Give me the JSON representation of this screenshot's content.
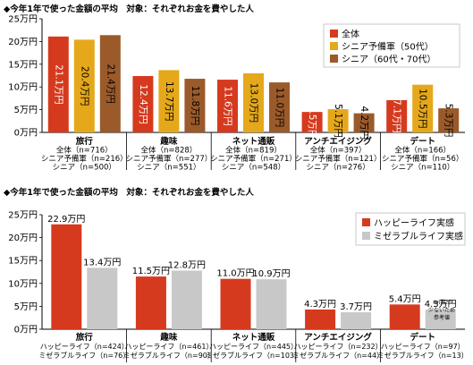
{
  "chart_data": [
    {
      "type": "bar",
      "title": "◆今年1年で使った金額の平均　対象：それぞれお金を費やした人",
      "ylim": [
        0,
        25
      ],
      "yticks": [
        "0万円",
        "5万円",
        "10万円",
        "15万円",
        "20万円",
        "25万円"
      ],
      "grid": false,
      "legend_position": "top-right",
      "categories": [
        "旅行",
        "趣味",
        "ネット通販",
        "アンチエイジング",
        "デート"
      ],
      "series": [
        {
          "name": "全体",
          "color": "#d63a1e",
          "values": [
            21.1,
            12.4,
            11.6,
            4.5,
            7.1
          ],
          "labels": [
            "21.1万円",
            "12.4万円",
            "11.6万円",
            "4.5万円",
            "7.1万円"
          ],
          "n": [
            "全体（n=716）",
            "全体（n=828）",
            "全体（n=819）",
            "全体（n=397）",
            "全体（n=166）"
          ]
        },
        {
          "name": "シニア予備軍（50代）",
          "color": "#e5a81a",
          "values": [
            20.4,
            13.7,
            13.0,
            5.1,
            10.5
          ],
          "labels": [
            "20.4万円",
            "13.7万円",
            "13.0万円",
            "5.1万円",
            "10.5万円"
          ],
          "n": [
            "シニア予備軍（n=216）",
            "シニア予備軍（n=277）",
            "シニア予備軍（n=271）",
            "シニア予備軍（n=121）",
            "シニア予備軍（n=56）"
          ]
        },
        {
          "name": "シニア（60代・70代）",
          "color": "#9b5a2a",
          "values": [
            21.4,
            11.8,
            11.0,
            4.2,
            5.3
          ],
          "labels": [
            "21.4万円",
            "11.8万円",
            "11.0万円",
            "4.2万円",
            "5.3万円"
          ],
          "n": [
            "シニア（n=500）",
            "シニア（n=551）",
            "シニア（n=548）",
            "シニア（n=276）",
            "シニア（n=110）"
          ]
        }
      ]
    },
    {
      "type": "bar",
      "title": "◆今年1年で使った金額の平均　対象：それぞれお金を費やした人",
      "ylim": [
        0,
        25
      ],
      "yticks": [
        "0万円",
        "5万円",
        "10万円",
        "15万円",
        "20万円",
        "25万円"
      ],
      "grid": false,
      "legend_position": "top-right",
      "categories": [
        "旅行",
        "趣味",
        "ネット通販",
        "アンチエイジング",
        "デート"
      ],
      "note": "※n数が少ないため参考値",
      "series": [
        {
          "name": "ハッピーライフ実感",
          "color": "#d63a1e",
          "values": [
            22.9,
            11.5,
            11.0,
            4.3,
            5.4
          ],
          "labels": [
            "22.9万円",
            "11.5万円",
            "11.0万円",
            "4.3万円",
            "5.4万円"
          ],
          "n": [
            "ハッピーライフ（n=424）",
            "ハッピーライフ（n=461）",
            "ハッピーライフ（n=445）",
            "ハッピーライフ（n=232）",
            "ハッピーライフ（n=97）"
          ]
        },
        {
          "name": "ミゼラブルライフ実感",
          "color": "#c8c8c8",
          "values": [
            13.4,
            12.8,
            10.9,
            3.7,
            4.3
          ],
          "labels": [
            "13.4万円",
            "12.8万円",
            "10.9万円",
            "3.7万円",
            "4.3万円"
          ],
          "n": [
            "ミゼラブルライフ（n=76）",
            "ミゼラブルライフ（n=90）",
            "ミゼラブルライフ（n=103）",
            "ミゼラブルライフ（n=44）",
            "ミゼラブルライフ（n=13）"
          ]
        }
      ]
    }
  ]
}
